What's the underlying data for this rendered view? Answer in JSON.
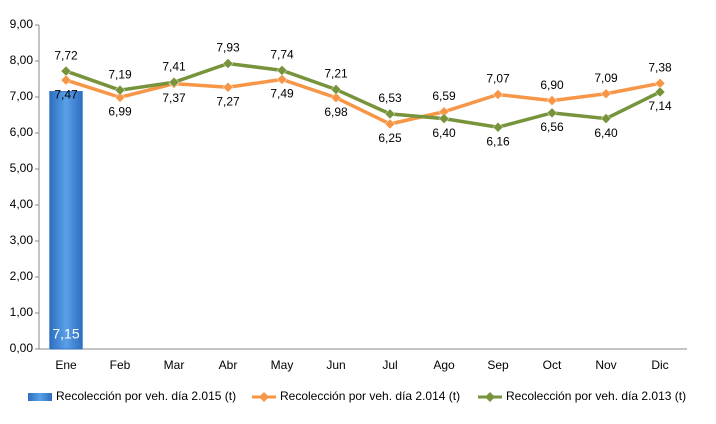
{
  "chart_data": {
    "type": "bar_line",
    "categories": [
      "Ene",
      "Feb",
      "Mar",
      "Abr",
      "May",
      "Jun",
      "Jul",
      "Ago",
      "Sep",
      "Oct",
      "Nov",
      "Dic"
    ],
    "series": [
      {
        "name": "Recolección por veh. día 2.015 (t)",
        "type": "bar",
        "color": "#4a8fd8",
        "values": [
          7.15,
          null,
          null,
          null,
          null,
          null,
          null,
          null,
          null,
          null,
          null,
          null
        ],
        "value_labels": [
          "7,15",
          null,
          null,
          null,
          null,
          null,
          null,
          null,
          null,
          null,
          null,
          null
        ]
      },
      {
        "name": "Recolección por veh. día 2.014 (t)",
        "type": "line",
        "color": "#f79646",
        "values": [
          7.47,
          6.99,
          7.37,
          7.27,
          7.49,
          6.98,
          6.25,
          6.59,
          7.07,
          6.9,
          7.09,
          7.38
        ],
        "value_labels": [
          "7,47",
          "6,99",
          "7,37",
          "7,27",
          "7,49",
          "6,98",
          "6,25",
          "6,59",
          "7,07",
          "6,90",
          "7,09",
          "7,38"
        ]
      },
      {
        "name": "Recolección por veh. día 2.013 (t)",
        "type": "line",
        "color": "#77933c",
        "values": [
          7.72,
          7.19,
          7.41,
          7.93,
          7.74,
          7.21,
          6.53,
          6.4,
          6.16,
          6.56,
          6.4,
          7.14
        ],
        "value_labels": [
          "7,72",
          "7,19",
          "7,41",
          "7,93",
          "7,74",
          "7,21",
          "6,53",
          "6,40",
          "6,16",
          "6,56",
          "6,40",
          "7,14"
        ]
      }
    ],
    "ylim": [
      0,
      9
    ],
    "yticks": [
      {
        "value": 0,
        "label": "0,00"
      },
      {
        "value": 1,
        "label": "1,00"
      },
      {
        "value": 2,
        "label": "2,00"
      },
      {
        "value": 3,
        "label": "3,00"
      },
      {
        "value": 4,
        "label": "4,00"
      },
      {
        "value": 5,
        "label": "5,00"
      },
      {
        "value": 6,
        "label": "6,00"
      },
      {
        "value": 7,
        "label": "7,00"
      },
      {
        "value": 8,
        "label": "8,00"
      },
      {
        "value": 9,
        "label": "9,00"
      }
    ],
    "legend": "bottom"
  }
}
